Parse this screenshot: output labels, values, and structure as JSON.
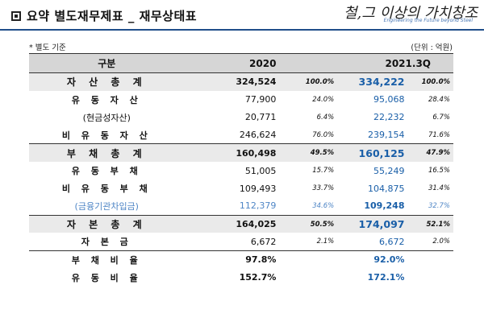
{
  "header": {
    "title": "요약 별도재무제표 _ 재무상태표",
    "logo_text": "철,그 이상의 가치창조",
    "logo_sub": "Engineering the Future beyond Steel"
  },
  "notes": {
    "basis": "* 별도 기준",
    "unit": "(단위 : 억원)"
  },
  "table": {
    "headers": {
      "label": "구분",
      "col1": "2020",
      "col2": "2021.3Q"
    },
    "rows": [
      {
        "label": "자 산 총 계",
        "v1": "324,524",
        "p1": "100.0%",
        "v2": "334,222",
        "p2": "100.0%"
      },
      {
        "label": "유 동 자 산",
        "v1": "77,900",
        "p1": "24.0%",
        "v2": "95,068",
        "p2": "28.4%"
      },
      {
        "label": "(현금성자산)",
        "v1": "20,771",
        "p1": "6.4%",
        "v2": "22,232",
        "p2": "6.7%"
      },
      {
        "label": "비 유 동 자 산",
        "v1": "246,624",
        "p1": "76.0%",
        "v2": "239,154",
        "p2": "71.6%"
      },
      {
        "label": "부 채 총 계",
        "v1": "160,498",
        "p1": "49.5%",
        "v2": "160,125",
        "p2": "47.9%"
      },
      {
        "label": "유 동 부 채",
        "v1": "51,005",
        "p1": "15.7%",
        "v2": "55,249",
        "p2": "16.5%"
      },
      {
        "label": "비 유 동 부 채",
        "v1": "109,493",
        "p1": "33.7%",
        "v2": "104,875",
        "p2": "31.4%"
      },
      {
        "label": "(금융기관차입금)",
        "v1": "112,379",
        "p1": "34.6%",
        "v2": "109,248",
        "p2": "32.7%"
      },
      {
        "label": "자 본 총 계",
        "v1": "164,025",
        "p1": "50.5%",
        "v2": "174,097",
        "p2": "52.1%"
      },
      {
        "label": "자 본 금",
        "v1": "6,672",
        "p1": "2.1%",
        "v2": "6,672",
        "p2": "2.0%"
      },
      {
        "label": "부 채 비 율",
        "v1": "97.8%",
        "v2": "92.0%"
      },
      {
        "label": "유 동 비 율",
        "v1": "152.7%",
        "v2": "172.1%"
      }
    ]
  },
  "colors": {
    "accent_blue": "#1a5fa8",
    "light_blue": "#4f86c6",
    "total_row_bg": "#eaeaea",
    "header_bg": "#d6d6d6"
  }
}
